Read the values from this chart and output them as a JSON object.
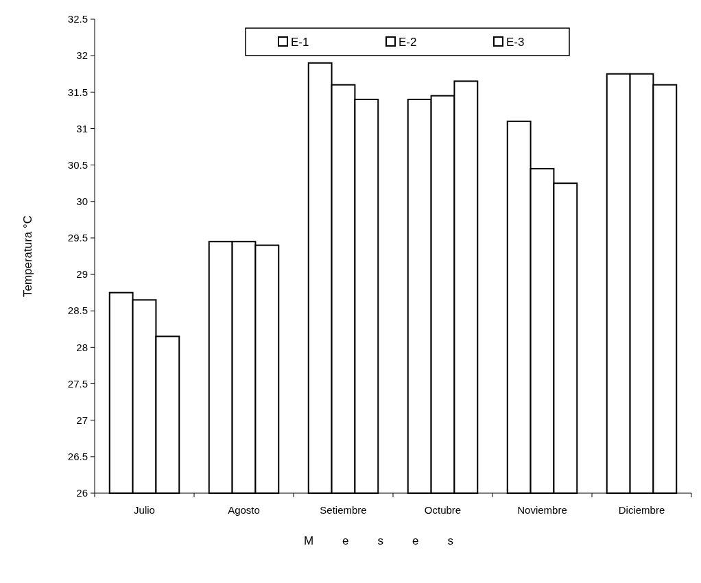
{
  "chart_data": {
    "type": "bar",
    "xlabel": "Meses",
    "ylabel": "Temperatura °C",
    "categories": [
      "Julio",
      "Agosto",
      "Setiembre",
      "Octubre",
      "Noviembre",
      "Diciembre"
    ],
    "series": [
      {
        "name": "E-1",
        "color": "#ffffff",
        "values": [
          28.75,
          29.45,
          31.9,
          31.4,
          31.1,
          31.75
        ]
      },
      {
        "name": "E-2",
        "color": "#ffffff",
        "values": [
          28.65,
          29.45,
          31.6,
          31.45,
          30.45,
          31.75
        ]
      },
      {
        "name": "E-3",
        "color": "#ffffff",
        "values": [
          28.15,
          29.4,
          31.4,
          31.65,
          30.25,
          31.6
        ]
      }
    ],
    "ylim": [
      26,
      32.5
    ],
    "yticks": [
      26,
      26.5,
      27,
      27.5,
      28,
      28.5,
      29,
      29.5,
      30,
      30.5,
      31,
      31.5,
      32,
      32.5
    ],
    "grid": false,
    "legend": "top"
  }
}
